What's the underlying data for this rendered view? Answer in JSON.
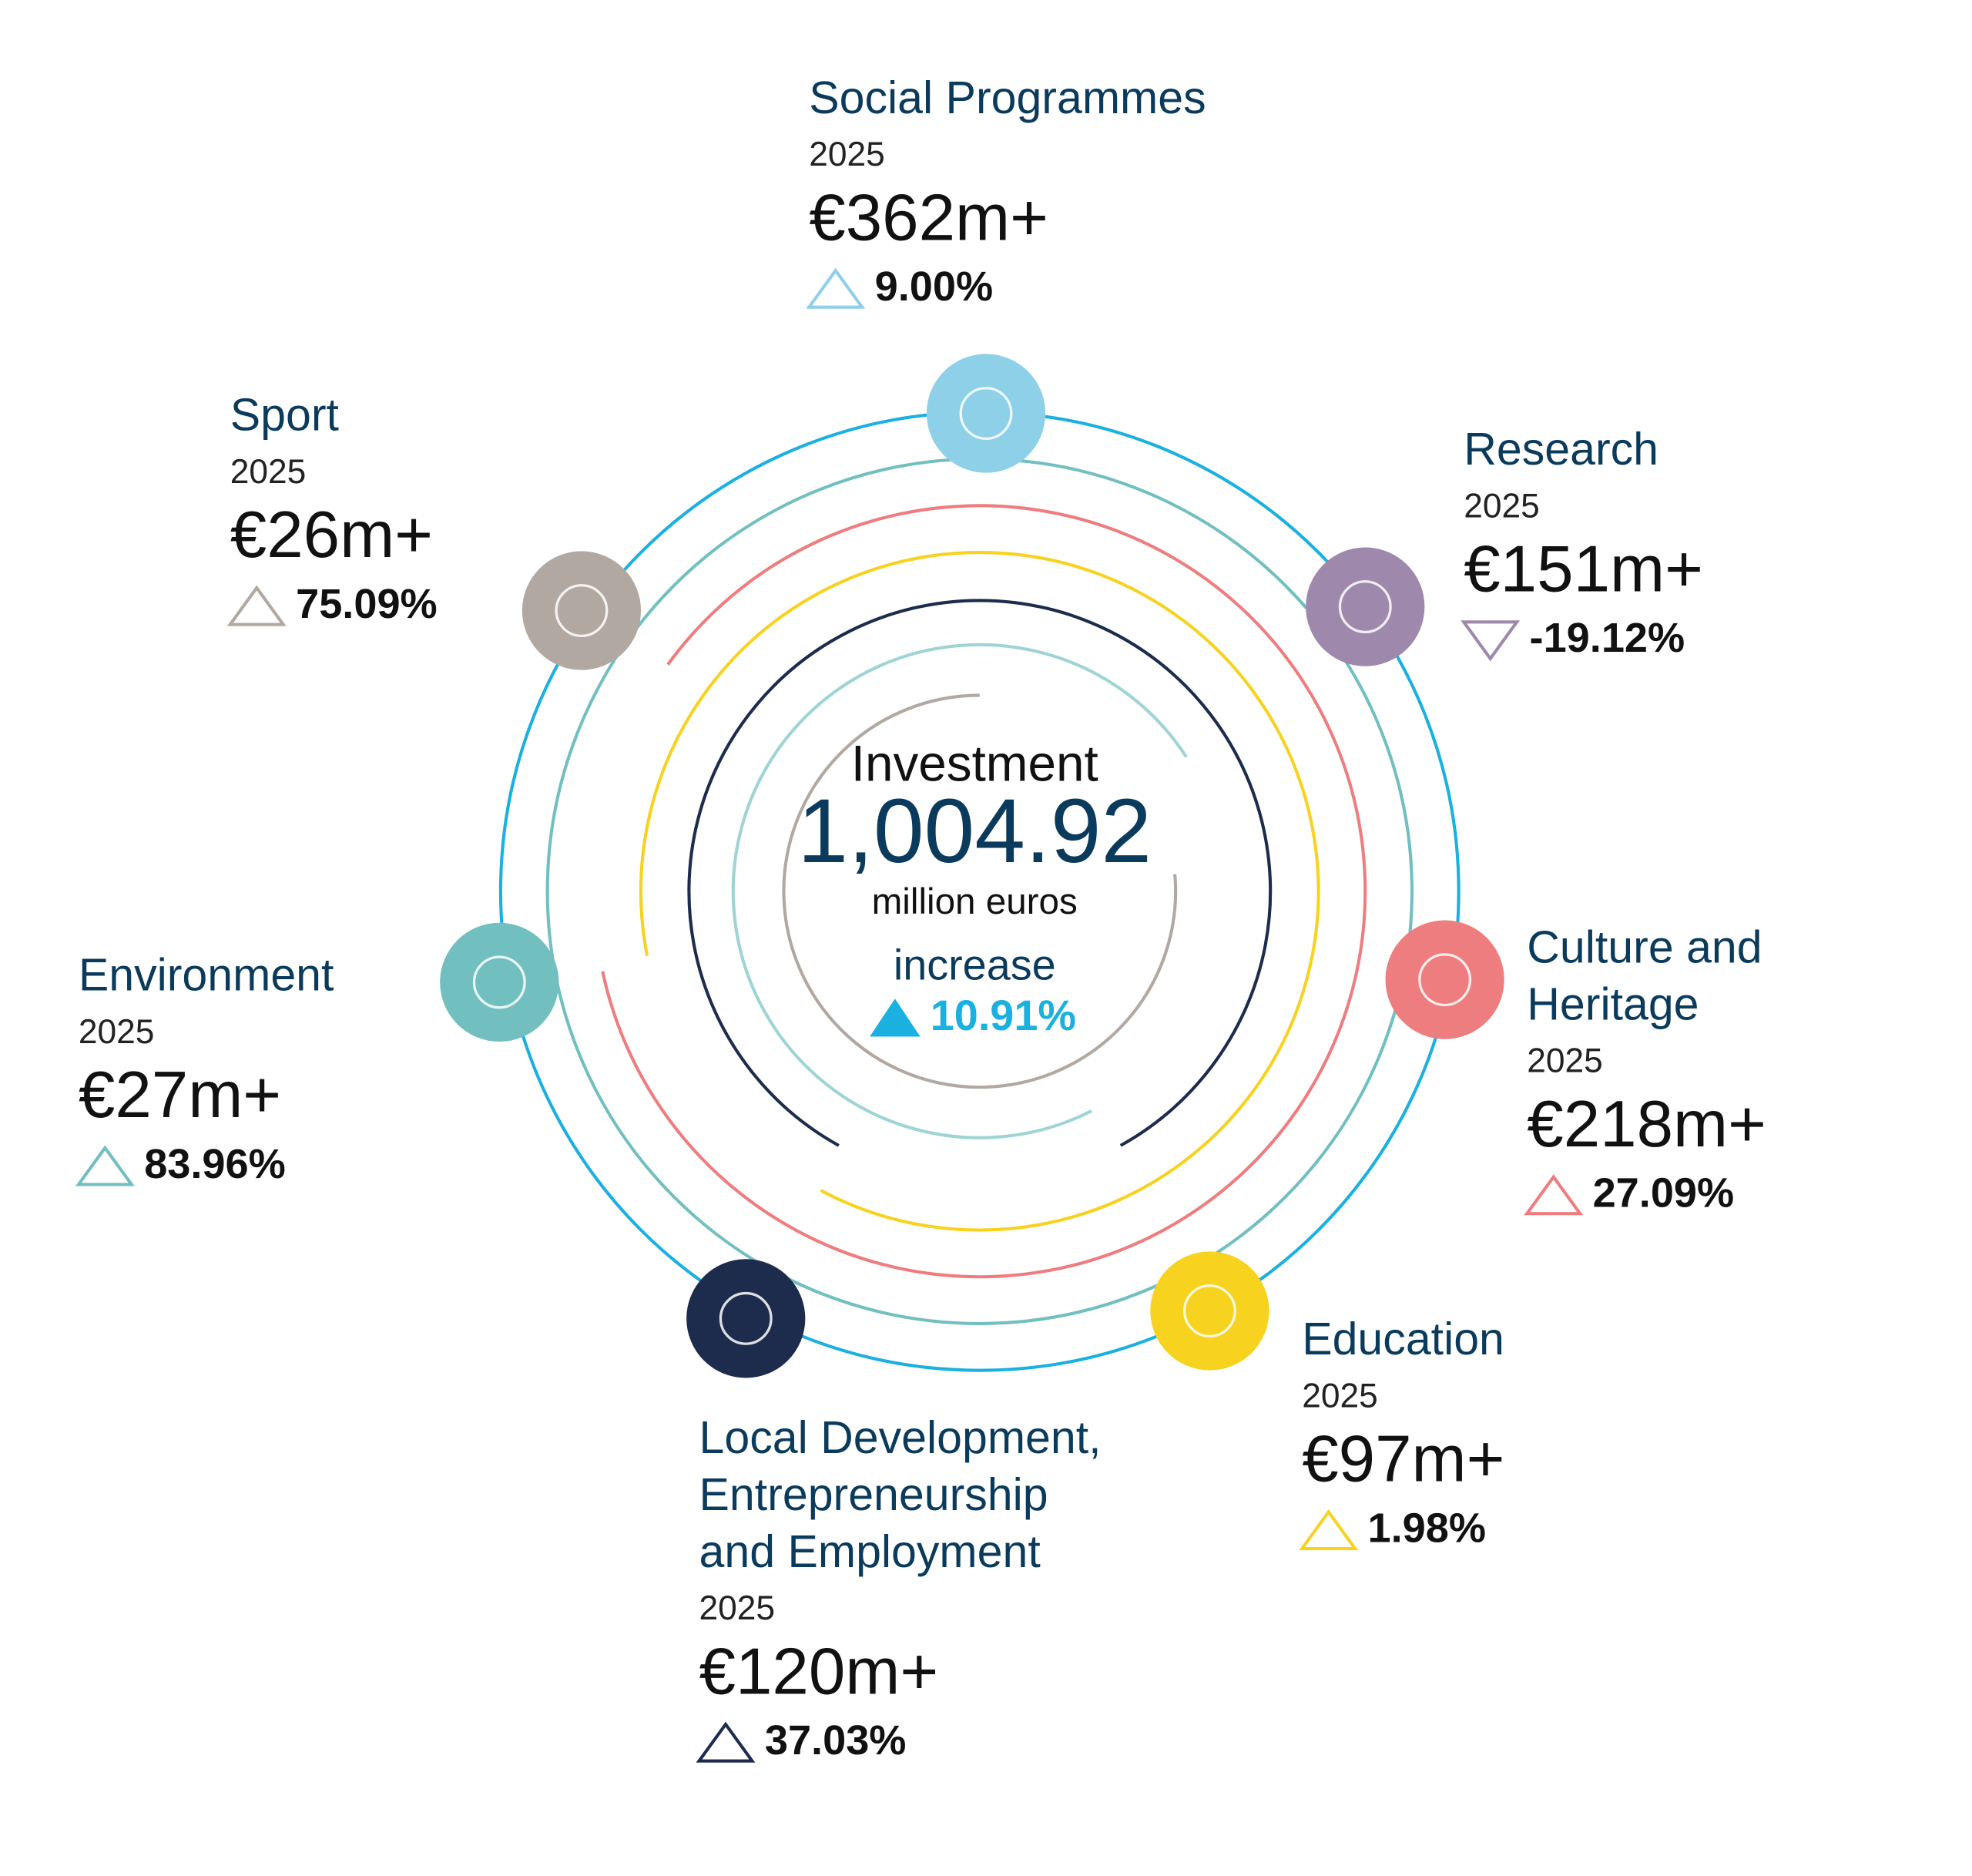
{
  "center": {
    "title": "Investment",
    "total": "1,004.92",
    "unit": "million euros",
    "change_label": "increase",
    "change": "10.91%",
    "color": "#1ab0e0"
  },
  "areas": [
    {
      "title_lines": [
        "Social Programmes"
      ],
      "year": "2025",
      "amount": "€362m+",
      "change": "9.00%",
      "color": "#8ed0e8"
    },
    {
      "title_lines": [
        "Research"
      ],
      "year": "2025",
      "amount": "€151m+",
      "change": "-19.12%",
      "color": "#9e88ac"
    },
    {
      "title_lines": [
        "Culture and",
        "Heritage"
      ],
      "year": "2025",
      "amount": "€218m+",
      "change": "27.09%",
      "color": "#ee7d7f"
    },
    {
      "title_lines": [
        "Education"
      ],
      "year": "2025",
      "amount": "€97m+",
      "change": "1.98%",
      "color": "#f7d21f"
    },
    {
      "title_lines": [
        "Local Development,",
        "Entrepreneurship",
        "and Employment"
      ],
      "year": "2025",
      "amount": "€120m+",
      "change": "37.03%",
      "color": "#1d2c4c"
    },
    {
      "title_lines": [
        "Environment"
      ],
      "year": "2025",
      "amount": "€27m+",
      "change": "83.96%",
      "color": "#72bfbf"
    },
    {
      "title_lines": [
        "Sport"
      ],
      "year": "2025",
      "amount": "€26m+",
      "change": "75.09%",
      "color": "#b1a8a1"
    }
  ]
}
